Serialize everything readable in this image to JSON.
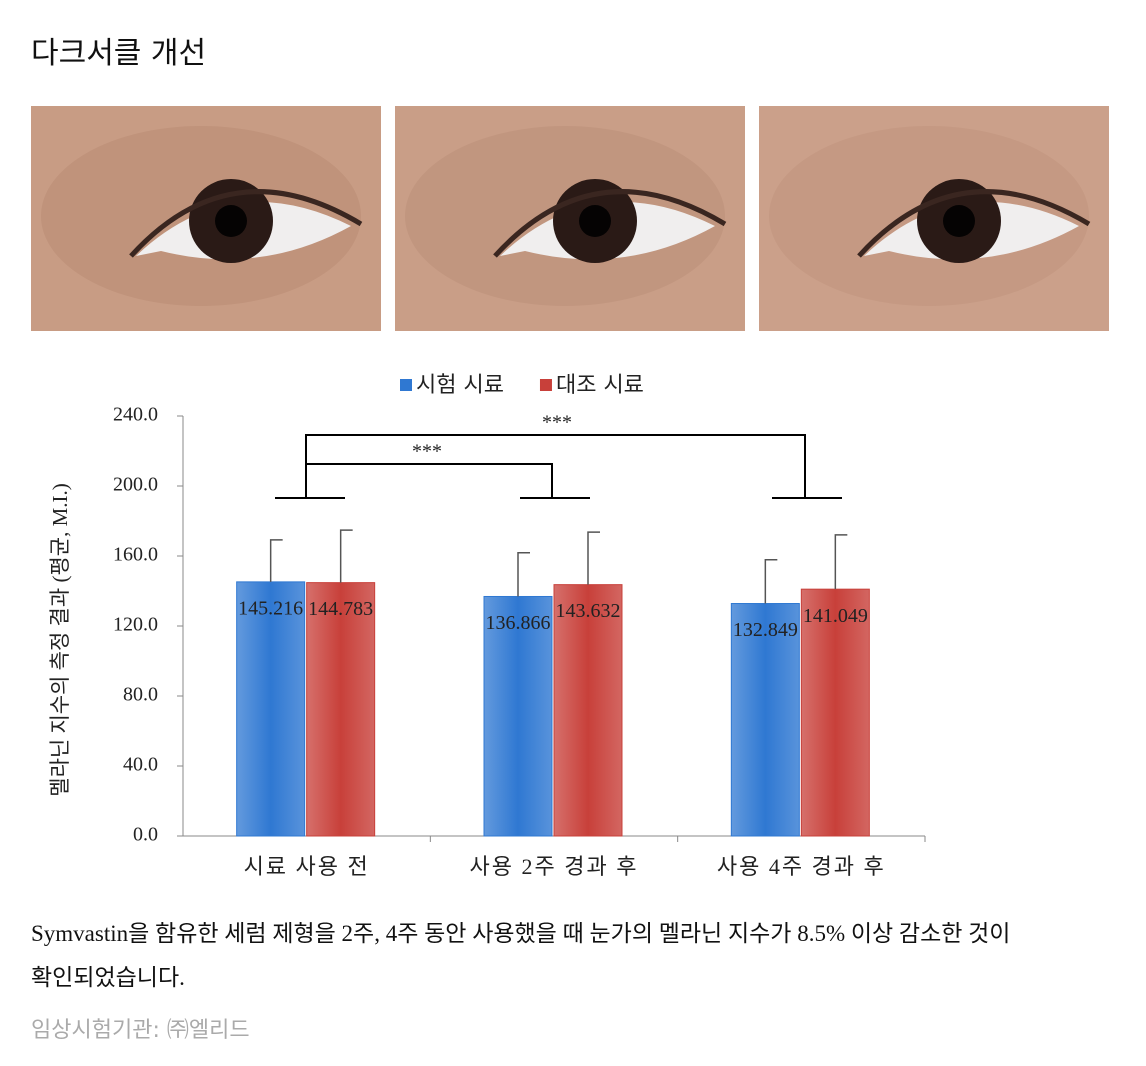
{
  "header": {
    "title": "다크서클 개선"
  },
  "chart_data": {
    "type": "bar",
    "y_label": "멜라닌 지수의 측정 결과 (평균, M.I.)",
    "categories": [
      "시료 사용 전",
      "사용 2주 경과 후",
      "사용 4주 경과 후"
    ],
    "series": [
      {
        "name": "시험 시료",
        "color": "#2f78d2",
        "values": [
          145.216,
          136.866,
          132.849
        ],
        "errors": [
          24,
          25,
          25
        ]
      },
      {
        "name": "대조 시료",
        "color": "#c8403a",
        "values": [
          144.783,
          143.632,
          141.049
        ],
        "errors": [
          30,
          30,
          31
        ]
      }
    ],
    "ylim": [
      0,
      240
    ],
    "yticks": [
      {
        "value": 0,
        "label": "0.0"
      },
      {
        "value": 40,
        "label": "40.0"
      },
      {
        "value": 80,
        "label": "80.0"
      },
      {
        "value": 120,
        "label": "120.0"
      },
      {
        "value": 160,
        "label": "160.0"
      },
      {
        "value": 200,
        "label": "200.0"
      },
      {
        "value": 240,
        "label": "240.0"
      }
    ],
    "annotations": [
      "***",
      "***"
    ],
    "legend": "top"
  },
  "caption": {
    "text": "Symvastin을 함유한 세럼 제형을 2주, 4주 동안 사용했을 때 눈가의 멜라닌 지수가 8.5% 이상 감소한 것이 확인되었습니다.",
    "source": "임상시험기관: ㈜엘리드"
  }
}
